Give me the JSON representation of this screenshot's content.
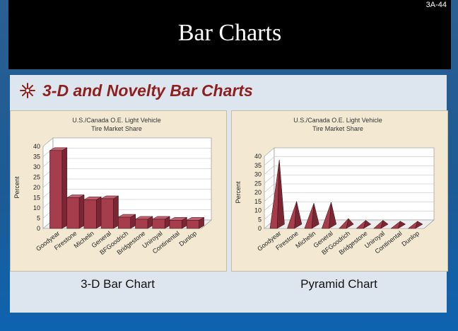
{
  "slide": {
    "number": "3A-44",
    "title": "Bar Charts"
  },
  "section": {
    "heading": "3-D and Novelty Bar Charts",
    "bullet_icon": "snowflake-icon"
  },
  "colors": {
    "bar_front": "#a53d4c",
    "bar_side": "#7a2633",
    "bar_top": "#c26070",
    "panel_bg": "#f3e9d2",
    "heading_color": "#8e1f1f"
  },
  "chart_data": [
    {
      "type": "bar",
      "style": "3d-bar",
      "title": "U.S./Canada O.E. Light Vehicle",
      "subtitle": "Tire Market Share",
      "ylabel": "Percent",
      "xlabel": "",
      "ylim": [
        0,
        40
      ],
      "yticks": [
        0,
        5,
        10,
        15,
        20,
        25,
        30,
        35,
        40
      ],
      "grid": true,
      "categories": [
        "Goodyear",
        "Firestone",
        "Michelin",
        "General",
        "BFGoodrich",
        "Bridgestone",
        "Uniroyal",
        "Continental",
        "Dunlop"
      ],
      "values": [
        38,
        15,
        14,
        14.5,
        5.5,
        4.5,
        4.5,
        4,
        4
      ],
      "caption": "3-D Bar Chart"
    },
    {
      "type": "bar",
      "style": "pyramid",
      "title": "U.S./Canada O.E. Light Vehicle",
      "subtitle": "Tire Market Share",
      "ylabel": "Percent",
      "xlabel": "",
      "ylim": [
        0,
        40
      ],
      "yticks": [
        0,
        5,
        10,
        15,
        20,
        25,
        30,
        35,
        40
      ],
      "grid": true,
      "categories": [
        "Goodyear",
        "Firestone",
        "Michelin",
        "General",
        "BFGoodrich",
        "Bridgestone",
        "Uniroyal",
        "Continental",
        "Dunlop"
      ],
      "values": [
        38,
        15,
        14,
        14.5,
        5.5,
        4.5,
        4.5,
        4,
        4
      ],
      "caption": "Pyramid Chart"
    }
  ]
}
